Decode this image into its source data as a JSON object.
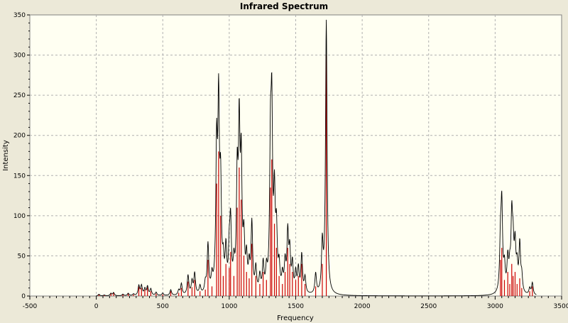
{
  "window": {
    "title": "Infrared Spectrum"
  },
  "chart_data": {
    "type": "line",
    "title": "Infrared Spectrum",
    "xlabel": "Frequency",
    "ylabel": "Intensity",
    "xlim": [
      -500,
      3500
    ],
    "ylim": [
      0,
      350
    ],
    "x_ticks": [
      -500,
      0,
      500,
      1000,
      1500,
      2000,
      2500,
      3000,
      3500
    ],
    "y_ticks": [
      0,
      50,
      100,
      150,
      200,
      250,
      300,
      350
    ],
    "grid": true,
    "colors": {
      "plot_background": "#fffff2",
      "spectrum_line": "#000000",
      "stick_bars": "#cc0000",
      "grid": "#b0b0b0"
    },
    "series": [
      {
        "kind": "sticks",
        "values": [
          [
            20,
            2
          ],
          [
            60,
            1
          ],
          [
            110,
            3
          ],
          [
            130,
            4
          ],
          [
            200,
            2
          ],
          [
            240,
            3
          ],
          [
            280,
            2
          ],
          [
            320,
            12
          ],
          [
            340,
            10
          ],
          [
            365,
            8
          ],
          [
            385,
            11
          ],
          [
            410,
            6
          ],
          [
            450,
            3
          ],
          [
            500,
            2
          ],
          [
            560,
            6
          ],
          [
            620,
            4
          ],
          [
            640,
            10
          ],
          [
            690,
            18
          ],
          [
            720,
            11
          ],
          [
            740,
            20
          ],
          [
            780,
            6
          ],
          [
            820,
            8
          ],
          [
            840,
            45
          ],
          [
            870,
            12
          ],
          [
            905,
            140
          ],
          [
            920,
            180
          ],
          [
            935,
            100
          ],
          [
            955,
            25
          ],
          [
            975,
            40
          ],
          [
            1000,
            35
          ],
          [
            1010,
            55
          ],
          [
            1035,
            25
          ],
          [
            1060,
            110
          ],
          [
            1075,
            160
          ],
          [
            1090,
            120
          ],
          [
            1110,
            50
          ],
          [
            1130,
            30
          ],
          [
            1150,
            22
          ],
          [
            1170,
            65
          ],
          [
            1200,
            25
          ],
          [
            1230,
            15
          ],
          [
            1255,
            30
          ],
          [
            1280,
            20
          ],
          [
            1310,
            135
          ],
          [
            1320,
            170
          ],
          [
            1340,
            90
          ],
          [
            1355,
            60
          ],
          [
            1375,
            25
          ],
          [
            1400,
            15
          ],
          [
            1420,
            30
          ],
          [
            1440,
            60
          ],
          [
            1455,
            40
          ],
          [
            1475,
            30
          ],
          [
            1500,
            20
          ],
          [
            1520,
            25
          ],
          [
            1545,
            40
          ],
          [
            1570,
            15
          ],
          [
            1650,
            12
          ],
          [
            1700,
            40
          ],
          [
            1730,
            300
          ],
          [
            3040,
            45
          ],
          [
            3050,
            60
          ],
          [
            3070,
            20
          ],
          [
            3095,
            30
          ],
          [
            3110,
            15
          ],
          [
            3125,
            40
          ],
          [
            3135,
            25
          ],
          [
            3150,
            30
          ],
          [
            3165,
            15
          ],
          [
            3185,
            22
          ],
          [
            3200,
            10
          ],
          [
            3260,
            6
          ],
          [
            3280,
            12
          ]
        ]
      },
      {
        "kind": "spectrum",
        "peaks": [
          [
            20,
            2
          ],
          [
            60,
            1
          ],
          [
            110,
            3
          ],
          [
            130,
            4
          ],
          [
            200,
            2
          ],
          [
            240,
            3
          ],
          [
            280,
            2
          ],
          [
            320,
            12
          ],
          [
            340,
            12
          ],
          [
            365,
            8
          ],
          [
            385,
            11
          ],
          [
            410,
            8
          ],
          [
            450,
            4
          ],
          [
            500,
            3
          ],
          [
            560,
            7
          ],
          [
            620,
            6
          ],
          [
            640,
            14
          ],
          [
            690,
            24
          ],
          [
            720,
            16
          ],
          [
            740,
            26
          ],
          [
            780,
            10
          ],
          [
            820,
            12
          ],
          [
            840,
            60
          ],
          [
            870,
            18
          ],
          [
            905,
            170
          ],
          [
            920,
            220
          ],
          [
            935,
            120
          ],
          [
            955,
            30
          ],
          [
            975,
            50
          ],
          [
            1000,
            45
          ],
          [
            1010,
            80
          ],
          [
            1035,
            30
          ],
          [
            1060,
            135
          ],
          [
            1075,
            190
          ],
          [
            1090,
            150
          ],
          [
            1110,
            60
          ],
          [
            1130,
            40
          ],
          [
            1150,
            30
          ],
          [
            1170,
            85
          ],
          [
            1200,
            30
          ],
          [
            1230,
            20
          ],
          [
            1255,
            35
          ],
          [
            1280,
            25
          ],
          [
            1310,
            165
          ],
          [
            1320,
            205
          ],
          [
            1340,
            110
          ],
          [
            1355,
            70
          ],
          [
            1375,
            30
          ],
          [
            1400,
            20
          ],
          [
            1420,
            35
          ],
          [
            1440,
            72
          ],
          [
            1455,
            48
          ],
          [
            1475,
            35
          ],
          [
            1500,
            25
          ],
          [
            1520,
            30
          ],
          [
            1545,
            48
          ],
          [
            1570,
            20
          ],
          [
            1650,
            25
          ],
          [
            1700,
            60
          ],
          [
            1730,
            340
          ],
          [
            3040,
            60
          ],
          [
            3050,
            105
          ],
          [
            3070,
            30
          ],
          [
            3095,
            40
          ],
          [
            3110,
            25
          ],
          [
            3125,
            88
          ],
          [
            3135,
            50
          ],
          [
            3150,
            55
          ],
          [
            3165,
            30
          ],
          [
            3185,
            60
          ],
          [
            3200,
            20
          ],
          [
            3260,
            8
          ],
          [
            3280,
            15
          ]
        ]
      }
    ]
  }
}
